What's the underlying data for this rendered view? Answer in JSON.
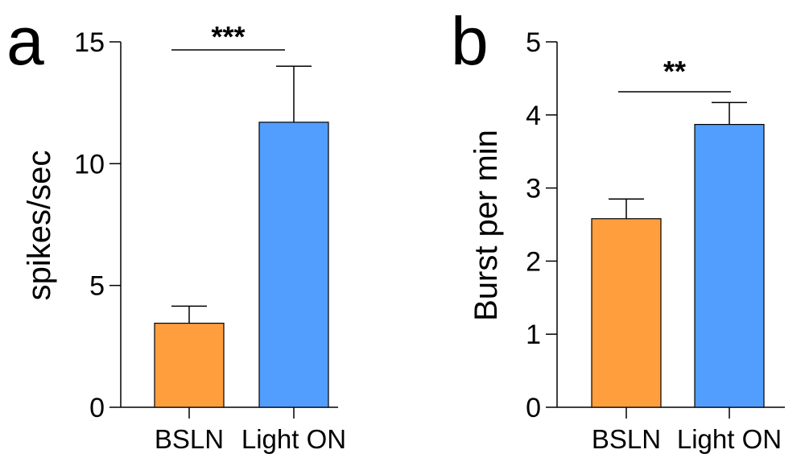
{
  "chart_data": [
    {
      "type": "bar",
      "panel_label": "a",
      "categories": [
        "BSLN",
        "Light ON"
      ],
      "values": [
        3.45,
        11.7
      ],
      "errors": [
        0.7,
        2.3
      ],
      "colors": [
        "#FF9E3D",
        "#519EFF"
      ],
      "ylabel": "spikes/sec",
      "ylim": [
        0,
        15
      ],
      "yticks": [
        0,
        5,
        10,
        15
      ],
      "yticklabels": [
        "0",
        "5",
        "10",
        "15"
      ],
      "significance": {
        "between": [
          "BSLN",
          "Light ON"
        ],
        "label": "***"
      }
    },
    {
      "type": "bar",
      "panel_label": "b",
      "categories": [
        "BSLN",
        "Light ON"
      ],
      "values": [
        2.58,
        3.87
      ],
      "errors": [
        0.27,
        0.3
      ],
      "colors": [
        "#FF9E3D",
        "#519EFF"
      ],
      "ylabel": "Burst per min",
      "ylim": [
        0,
        5
      ],
      "yticks": [
        0,
        1,
        2,
        3,
        4,
        5
      ],
      "yticklabels": [
        "0",
        "1",
        "2",
        "3",
        "4",
        "5"
      ],
      "significance": {
        "between": [
          "BSLN",
          "Light ON"
        ],
        "label": "**"
      }
    }
  ]
}
